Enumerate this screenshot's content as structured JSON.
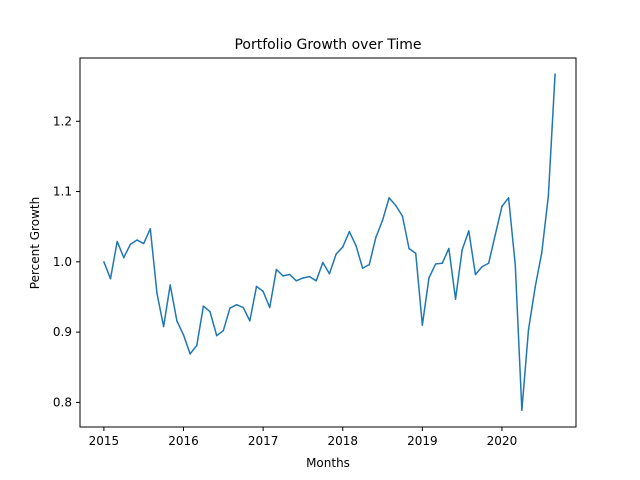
{
  "chart_data": {
    "type": "line",
    "title": "Portfolio Growth over Time",
    "xlabel": "Months",
    "ylabel": "Percent Growth",
    "xlim": [
      2014.7,
      2020.93
    ],
    "ylim": [
      0.765,
      1.29
    ],
    "x_ticks": [
      2015,
      2016,
      2017,
      2018,
      2019,
      2020
    ],
    "x_tick_labels": [
      "2015",
      "2016",
      "2017",
      "2018",
      "2019",
      "2020"
    ],
    "y_ticks": [
      0.8,
      0.9,
      1.0,
      1.1,
      1.2
    ],
    "y_tick_labels": [
      "0.8",
      "0.9",
      "1.0",
      "1.1",
      "1.2"
    ],
    "grid": false,
    "legend": "none",
    "series": [
      {
        "color": "#1f77b4",
        "x": [
          2015.0,
          2015.083,
          2015.167,
          2015.25,
          2015.333,
          2015.417,
          2015.5,
          2015.583,
          2015.667,
          2015.75,
          2015.833,
          2015.917,
          2016.0,
          2016.083,
          2016.167,
          2016.25,
          2016.333,
          2016.417,
          2016.5,
          2016.583,
          2016.667,
          2016.75,
          2016.833,
          2016.917,
          2017.0,
          2017.083,
          2017.167,
          2017.25,
          2017.333,
          2017.417,
          2017.5,
          2017.583,
          2017.667,
          2017.75,
          2017.833,
          2017.917,
          2018.0,
          2018.083,
          2018.167,
          2018.25,
          2018.333,
          2018.417,
          2018.5,
          2018.583,
          2018.667,
          2018.75,
          2018.833,
          2018.917,
          2019.0,
          2019.083,
          2019.167,
          2019.25,
          2019.333,
          2019.417,
          2019.5,
          2019.583,
          2019.667,
          2019.75,
          2019.833,
          2019.917,
          2020.0,
          2020.083,
          2020.167,
          2020.25,
          2020.333,
          2020.417,
          2020.5,
          2020.583,
          2020.667
        ],
        "y": [
          1.0,
          0.976,
          1.029,
          1.006,
          1.025,
          1.031,
          1.026,
          1.047,
          0.955,
          0.908,
          0.967,
          0.916,
          0.896,
          0.869,
          0.881,
          0.937,
          0.929,
          0.895,
          0.902,
          0.934,
          0.939,
          0.935,
          0.916,
          0.965,
          0.958,
          0.935,
          0.989,
          0.98,
          0.982,
          0.973,
          0.977,
          0.979,
          0.973,
          0.999,
          0.983,
          1.011,
          1.021,
          1.043,
          1.023,
          0.991,
          0.996,
          1.035,
          1.059,
          1.091,
          1.08,
          1.065,
          1.019,
          1.012,
          0.91,
          0.977,
          0.997,
          0.998,
          1.019,
          0.947,
          1.017,
          1.044,
          0.982,
          0.993,
          0.998,
          1.039,
          1.079,
          1.091,
          0.996,
          0.789,
          0.903,
          0.964,
          1.013,
          1.094,
          1.267
        ]
      }
    ]
  }
}
